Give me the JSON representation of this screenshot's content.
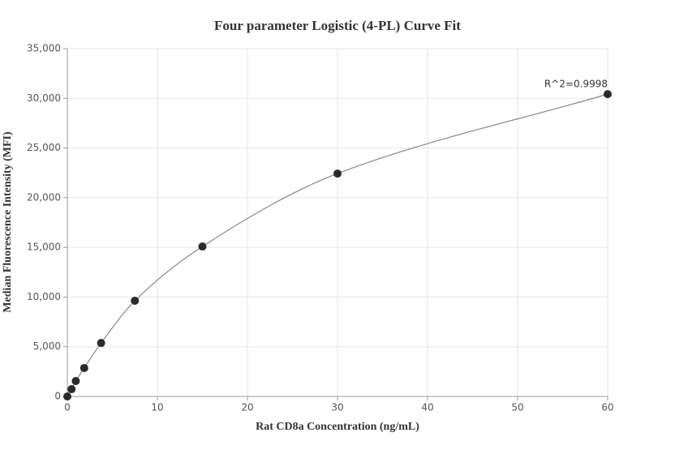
{
  "chart_data": {
    "type": "scatter-line",
    "title": "Four parameter Logistic (4-PL) Curve Fit",
    "xlabel": "Rat CD8a Concentration (ng/mL)",
    "ylabel": "Median Fluorescence Intensity (MFI)",
    "annotation": "R^2=0.9998",
    "x": [
      0,
      0.469,
      0.938,
      1.875,
      3.75,
      7.5,
      15,
      30,
      60
    ],
    "values": [
      0,
      730,
      1550,
      2860,
      5380,
      9630,
      15090,
      22430,
      30420
    ],
    "color": "#2b2b2b",
    "line_color": "#888888",
    "curve": "smooth",
    "xlim": [
      0,
      60
    ],
    "xticks": [
      0,
      10,
      20,
      30,
      40,
      50,
      60
    ],
    "ylim": [
      0,
      35000
    ],
    "yticks": [
      0,
      {
        "value": 5000,
        "label": "5,000"
      },
      {
        "value": 10000,
        "label": "10,000"
      },
      {
        "value": 15000,
        "label": "15,000"
      },
      {
        "value": 20000,
        "label": "20,000"
      },
      {
        "value": 25000,
        "label": "25,000"
      },
      {
        "value": 30000,
        "label": "30,000"
      },
      {
        "value": 35000,
        "label": "35,000"
      }
    ],
    "grid": true
  }
}
